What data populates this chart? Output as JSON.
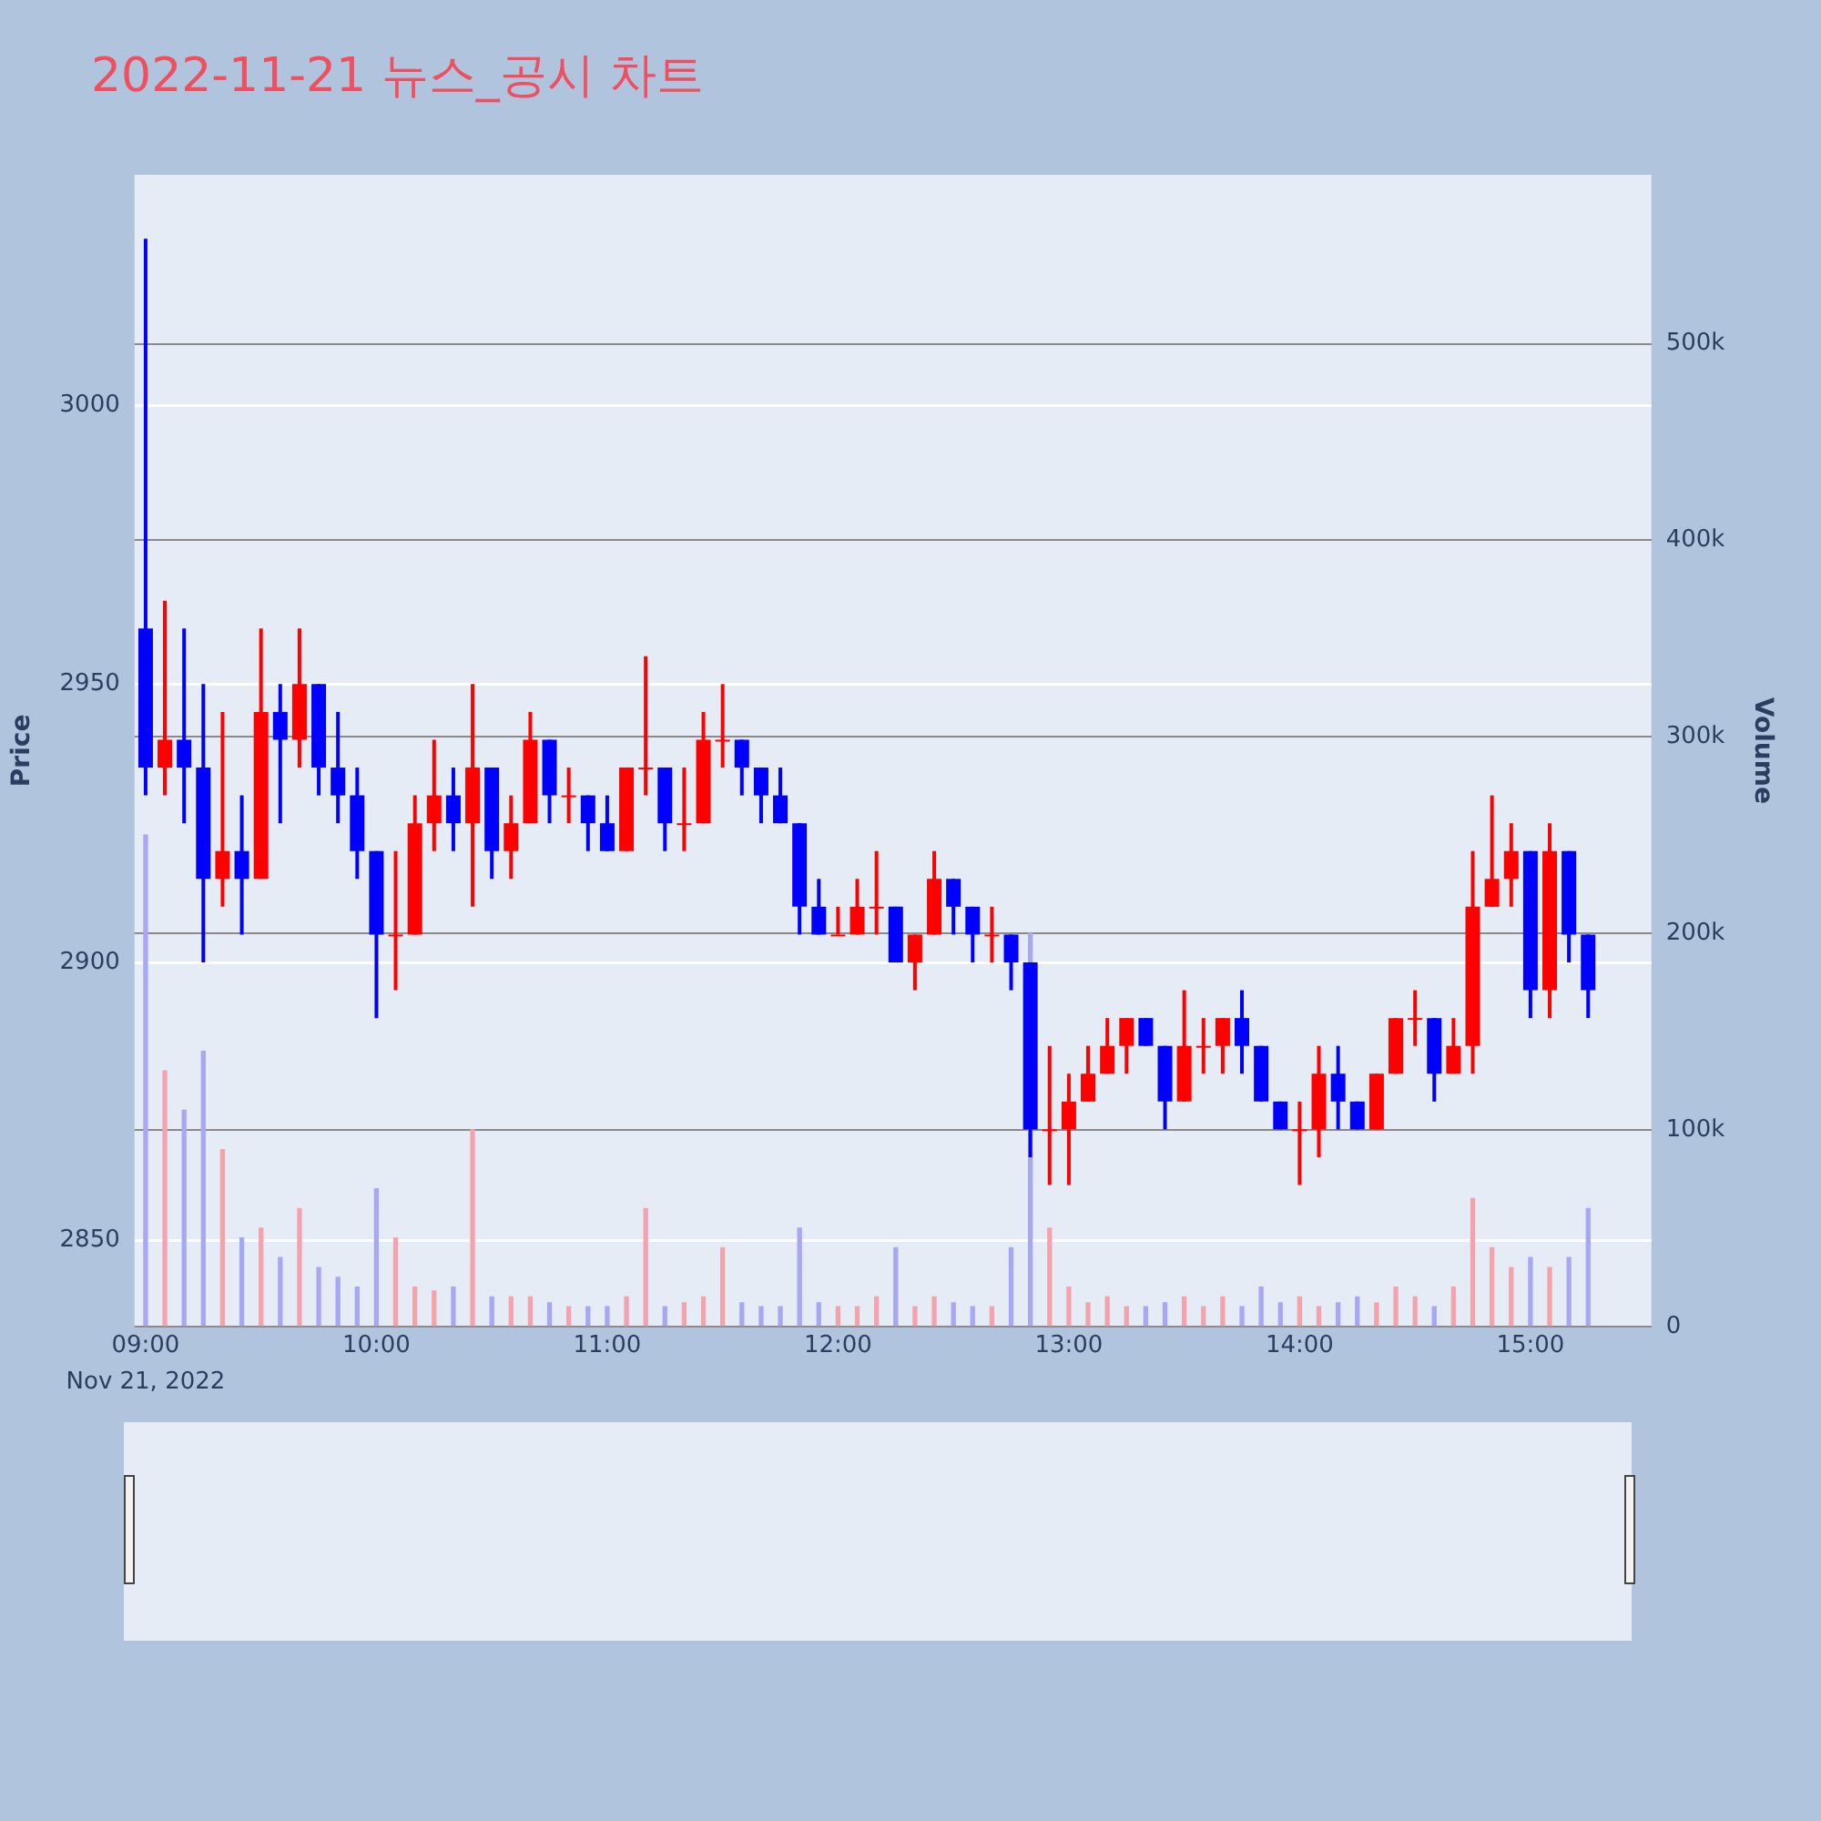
{
  "chart_data": {
    "type": "candlestick",
    "title": "2022-11-21 뉴스_공시 차트",
    "ylabel": "Price",
    "y2label": "Volume",
    "annotations": [
      "Nov 21, 2022"
    ],
    "x": [
      9,
      9.0833,
      9.1667,
      9.25,
      9.3333,
      9.4167,
      9.5,
      9.5833,
      9.6667,
      9.75,
      9.8333,
      9.9167,
      10,
      10.0833,
      10.1667,
      10.25,
      10.3333,
      10.4167,
      10.5,
      10.5833,
      10.6667,
      10.75,
      10.8333,
      10.9167,
      11,
      11.0833,
      11.1667,
      11.25,
      11.3333,
      11.4167,
      11.5,
      11.5833,
      11.6667,
      11.75,
      11.8333,
      11.9167,
      12,
      12.0833,
      12.1667,
      12.25,
      12.3333,
      12.4167,
      12.5,
      12.5833,
      12.6667,
      12.75,
      12.8333,
      12.9167,
      13,
      13.0833,
      13.1667,
      13.25,
      13.3333,
      13.4167,
      13.5,
      13.5833,
      13.6667,
      13.75,
      13.8333,
      13.9167,
      14,
      14.0833,
      14.1667,
      14.25,
      14.3333,
      14.4167,
      14.5,
      14.5833,
      14.6667,
      14.75,
      14.8333,
      14.9167,
      15,
      15.0833,
      15.1667,
      15.25
    ],
    "series": [
      {
        "type": "candlestick",
        "ohlc": [
          [
            2960,
            3030,
            2930,
            2935
          ],
          [
            2935,
            2965,
            2930,
            2940
          ],
          [
            2940,
            2960,
            2925,
            2935
          ],
          [
            2935,
            2950,
            2900,
            2915
          ],
          [
            2915,
            2945,
            2910,
            2920
          ],
          [
            2920,
            2930,
            2905,
            2915
          ],
          [
            2915,
            2960,
            2915,
            2945
          ],
          [
            2945,
            2950,
            2925,
            2940
          ],
          [
            2940,
            2960,
            2935,
            2950
          ],
          [
            2950,
            2950,
            2930,
            2935
          ],
          [
            2935,
            2945,
            2925,
            2930
          ],
          [
            2930,
            2935,
            2915,
            2920
          ],
          [
            2920,
            2920,
            2890,
            2905
          ],
          [
            2905,
            2920,
            2895,
            2905
          ],
          [
            2905,
            2930,
            2905,
            2925
          ],
          [
            2925,
            2940,
            2920,
            2930
          ],
          [
            2930,
            2935,
            2920,
            2925
          ],
          [
            2925,
            2950,
            2910,
            2935
          ],
          [
            2935,
            2935,
            2915,
            2920
          ],
          [
            2920,
            2930,
            2915,
            2925
          ],
          [
            2925,
            2945,
            2925,
            2940
          ],
          [
            2940,
            2940,
            2925,
            2930
          ],
          [
            2930,
            2935,
            2925,
            2930
          ],
          [
            2930,
            2930,
            2920,
            2925
          ],
          [
            2925,
            2930,
            2920,
            2920
          ],
          [
            2920,
            2935,
            2920,
            2935
          ],
          [
            2935,
            2955,
            2930,
            2935
          ],
          [
            2935,
            2935,
            2920,
            2925
          ],
          [
            2925,
            2935,
            2920,
            2925
          ],
          [
            2925,
            2945,
            2925,
            2940
          ],
          [
            2940,
            2950,
            2935,
            2940
          ],
          [
            2940,
            2940,
            2930,
            2935
          ],
          [
            2935,
            2935,
            2925,
            2930
          ],
          [
            2930,
            2935,
            2925,
            2925
          ],
          [
            2925,
            2925,
            2905,
            2910
          ],
          [
            2910,
            2915,
            2905,
            2905
          ],
          [
            2905,
            2910,
            2905,
            2905
          ],
          [
            2905,
            2915,
            2905,
            2910
          ],
          [
            2910,
            2920,
            2905,
            2910
          ],
          [
            2910,
            2910,
            2900,
            2900
          ],
          [
            2900,
            2905,
            2895,
            2905
          ],
          [
            2905,
            2920,
            2905,
            2915
          ],
          [
            2915,
            2915,
            2905,
            2910
          ],
          [
            2910,
            2910,
            2900,
            2905
          ],
          [
            2905,
            2910,
            2900,
            2905
          ],
          [
            2905,
            2905,
            2895,
            2900
          ],
          [
            2900,
            2900,
            2865,
            2870
          ],
          [
            2870,
            2885,
            2860,
            2870
          ],
          [
            2870,
            2880,
            2860,
            2875
          ],
          [
            2875,
            2885,
            2875,
            2880
          ],
          [
            2880,
            2890,
            2880,
            2885
          ],
          [
            2885,
            2890,
            2880,
            2890
          ],
          [
            2890,
            2890,
            2885,
            2885
          ],
          [
            2885,
            2885,
            2870,
            2875
          ],
          [
            2875,
            2895,
            2875,
            2885
          ],
          [
            2885,
            2890,
            2880,
            2885
          ],
          [
            2885,
            2890,
            2880,
            2890
          ],
          [
            2890,
            2895,
            2880,
            2885
          ],
          [
            2885,
            2885,
            2875,
            2875
          ],
          [
            2875,
            2875,
            2870,
            2870
          ],
          [
            2870,
            2875,
            2860,
            2870
          ],
          [
            2870,
            2885,
            2865,
            2880
          ],
          [
            2880,
            2885,
            2870,
            2875
          ],
          [
            2875,
            2875,
            2870,
            2870
          ],
          [
            2870,
            2880,
            2870,
            2880
          ],
          [
            2880,
            2890,
            2880,
            2890
          ],
          [
            2890,
            2895,
            2885,
            2890
          ],
          [
            2890,
            2890,
            2875,
            2880
          ],
          [
            2880,
            2890,
            2880,
            2885
          ],
          [
            2885,
            2920,
            2880,
            2910
          ],
          [
            2910,
            2930,
            2910,
            2915
          ],
          [
            2915,
            2925,
            2910,
            2920
          ],
          [
            2920,
            2920,
            2890,
            2895
          ],
          [
            2895,
            2925,
            2890,
            2920
          ],
          [
            2920,
            2920,
            2900,
            2905
          ],
          [
            2905,
            2905,
            2890,
            2895
          ]
        ],
        "colors": [
          "#0000ff",
          "#ff0000",
          "#0000ff",
          "#0000ff",
          "#ff0000",
          "#0000ff",
          "#ff0000",
          "#0000ff",
          "#ff0000",
          "#0000ff",
          "#0000ff",
          "#0000ff",
          "#0000ff",
          "#ff0000",
          "#ff0000",
          "#ff0000",
          "#0000ff",
          "#ff0000",
          "#0000ff",
          "#ff0000",
          "#ff0000",
          "#0000ff",
          "#ff0000",
          "#0000ff",
          "#0000ff",
          "#ff0000",
          "#ff0000",
          "#0000ff",
          "#ff0000",
          "#ff0000",
          "#ff0000",
          "#0000ff",
          "#0000ff",
          "#0000ff",
          "#0000ff",
          "#0000ff",
          "#ff0000",
          "#ff0000",
          "#ff0000",
          "#0000ff",
          "#ff0000",
          "#ff0000",
          "#0000ff",
          "#0000ff",
          "#ff0000",
          "#0000ff",
          "#0000ff",
          "#ff0000",
          "#ff0000",
          "#ff0000",
          "#ff0000",
          "#ff0000",
          "#0000ff",
          "#0000ff",
          "#ff0000",
          "#ff0000",
          "#ff0000",
          "#0000ff",
          "#0000ff",
          "#0000ff",
          "#ff0000",
          "#ff0000",
          "#0000ff",
          "#0000ff",
          "#ff0000",
          "#ff0000",
          "#ff0000",
          "#0000ff",
          "#ff0000",
          "#ff0000",
          "#ff0000",
          "#ff0000",
          "#0000ff",
          "#ff0000",
          "#0000ff",
          "#0000ff"
        ]
      },
      {
        "type": "bar",
        "axis": "y2",
        "values": [
          250000,
          130000,
          110000,
          140000,
          90000,
          45000,
          50000,
          35000,
          60000,
          30000,
          25000,
          20000,
          70000,
          45000,
          20000,
          18000,
          20000,
          100000,
          15000,
          15000,
          15000,
          12000,
          10000,
          10000,
          10000,
          15000,
          60000,
          10000,
          12000,
          15000,
          40000,
          12000,
          10000,
          10000,
          50000,
          12000,
          10000,
          10000,
          15000,
          40000,
          10000,
          15000,
          12000,
          10000,
          10000,
          40000,
          200000,
          50000,
          20000,
          12000,
          15000,
          10000,
          10000,
          12000,
          15000,
          10000,
          15000,
          10000,
          20000,
          12000,
          15000,
          10000,
          12000,
          15000,
          12000,
          20000,
          15000,
          10000,
          20000,
          65000,
          40000,
          30000,
          35000,
          30000,
          35000,
          60000
        ],
        "colors": [
          "#a7a7f4",
          "#f4a3ad",
          "#a7a7f4",
          "#a7a7f4",
          "#f4a3ad",
          "#a7a7f4",
          "#f4a3ad",
          "#a7a7f4",
          "#f4a3ad",
          "#a7a7f4",
          "#a7a7f4",
          "#a7a7f4",
          "#a7a7f4",
          "#f4a3ad",
          "#f4a3ad",
          "#f4a3ad",
          "#a7a7f4",
          "#f4a3ad",
          "#a7a7f4",
          "#f4a3ad",
          "#f4a3ad",
          "#a7a7f4",
          "#f4a3ad",
          "#a7a7f4",
          "#a7a7f4",
          "#f4a3ad",
          "#f4a3ad",
          "#a7a7f4",
          "#f4a3ad",
          "#f4a3ad",
          "#f4a3ad",
          "#a7a7f4",
          "#a7a7f4",
          "#a7a7f4",
          "#a7a7f4",
          "#a7a7f4",
          "#f4a3ad",
          "#f4a3ad",
          "#f4a3ad",
          "#a7a7f4",
          "#f4a3ad",
          "#f4a3ad",
          "#a7a7f4",
          "#a7a7f4",
          "#f4a3ad",
          "#a7a7f4",
          "#a7a7f4",
          "#f4a3ad",
          "#f4a3ad",
          "#f4a3ad",
          "#f4a3ad",
          "#f4a3ad",
          "#a7a7f4",
          "#a7a7f4",
          "#f4a3ad",
          "#f4a3ad",
          "#f4a3ad",
          "#a7a7f4",
          "#a7a7f4",
          "#a7a7f4",
          "#f4a3ad",
          "#f4a3ad",
          "#a7a7f4",
          "#a7a7f4",
          "#f4a3ad",
          "#f4a3ad",
          "#f4a3ad",
          "#a7a7f4",
          "#f4a3ad",
          "#f4a3ad",
          "#f4a3ad",
          "#f4a3ad",
          "#a7a7f4",
          "#f4a3ad",
          "#a7a7f4",
          "#a7a7f4"
        ]
      }
    ],
    "xlim": [
      8.952,
      15.524
    ],
    "xticks": [
      {
        "value": 9,
        "label": "09:00"
      },
      {
        "value": 10,
        "label": "10:00"
      },
      {
        "value": 11,
        "label": "11:00"
      },
      {
        "value": 12,
        "label": "12:00"
      },
      {
        "value": 13,
        "label": "13:00"
      },
      {
        "value": 14,
        "label": "14:00"
      },
      {
        "value": 15,
        "label": "15:00"
      }
    ],
    "ylim": [
      2834.6,
      3041.5
    ],
    "yticks": [
      2850,
      2900,
      2950,
      3000
    ],
    "y2lim": [
      0,
      586000
    ],
    "y2ticks": [
      0,
      {
        "value": 100000,
        "label": "100k"
      },
      {
        "value": 200000,
        "label": "200k"
      },
      {
        "value": 300000,
        "label": "300k"
      },
      {
        "value": 400000,
        "label": "400k"
      },
      {
        "value": 500000,
        "label": "500k"
      }
    ],
    "grid": "y",
    "legend": false
  }
}
